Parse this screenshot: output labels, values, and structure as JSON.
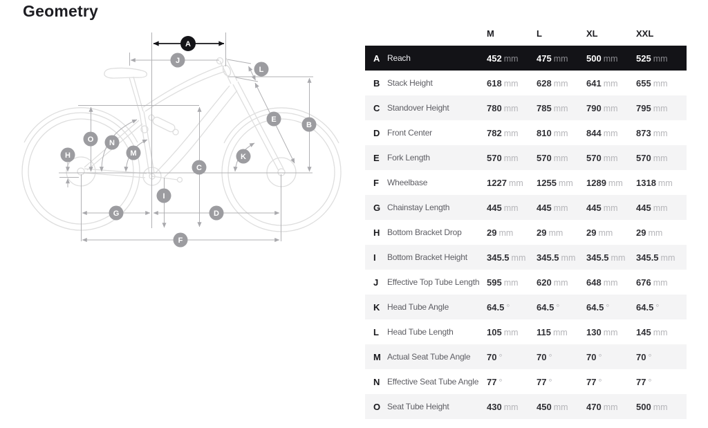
{
  "title": "Geometry",
  "table": {
    "columns": [
      "M",
      "L",
      "XL",
      "XXL"
    ],
    "rows": [
      {
        "letter": "A",
        "name": "Reach",
        "values": [
          "452",
          "475",
          "500",
          "525"
        ],
        "unit": "mm",
        "highlight": true
      },
      {
        "letter": "B",
        "name": "Stack Height",
        "values": [
          "618",
          "628",
          "641",
          "655"
        ],
        "unit": "mm"
      },
      {
        "letter": "C",
        "name": "Standover Height",
        "values": [
          "780",
          "785",
          "790",
          "795"
        ],
        "unit": "mm"
      },
      {
        "letter": "D",
        "name": "Front Center",
        "values": [
          "782",
          "810",
          "844",
          "873"
        ],
        "unit": "mm"
      },
      {
        "letter": "E",
        "name": "Fork Length",
        "values": [
          "570",
          "570",
          "570",
          "570"
        ],
        "unit": "mm"
      },
      {
        "letter": "F",
        "name": "Wheelbase",
        "values": [
          "1227",
          "1255",
          "1289",
          "1318"
        ],
        "unit": "mm"
      },
      {
        "letter": "G",
        "name": "Chainstay Length",
        "values": [
          "445",
          "445",
          "445",
          "445"
        ],
        "unit": "mm"
      },
      {
        "letter": "H",
        "name": "Bottom Bracket Drop",
        "values": [
          "29",
          "29",
          "29",
          "29"
        ],
        "unit": "mm"
      },
      {
        "letter": "I",
        "name": "Bottom Bracket Height",
        "values": [
          "345.5",
          "345.5",
          "345.5",
          "345.5"
        ],
        "unit": "mm"
      },
      {
        "letter": "J",
        "name": "Effective Top Tube Length",
        "values": [
          "595",
          "620",
          "648",
          "676"
        ],
        "unit": "mm"
      },
      {
        "letter": "K",
        "name": "Head Tube Angle",
        "values": [
          "64.5",
          "64.5",
          "64.5",
          "64.5"
        ],
        "unit": "°"
      },
      {
        "letter": "L",
        "name": "Head Tube Length",
        "values": [
          "105",
          "115",
          "130",
          "145"
        ],
        "unit": "mm"
      },
      {
        "letter": "M",
        "name": "Actual Seat Tube Angle",
        "values": [
          "70",
          "70",
          "70",
          "70"
        ],
        "unit": "°"
      },
      {
        "letter": "N",
        "name": "Effective Seat Tube Angle",
        "values": [
          "77",
          "77",
          "77",
          "77"
        ],
        "unit": "°"
      },
      {
        "letter": "O",
        "name": "Seat Tube Height",
        "values": [
          "430",
          "450",
          "470",
          "500"
        ],
        "unit": "mm"
      }
    ]
  },
  "diagram": {
    "marker_letters": [
      "A",
      "B",
      "C",
      "D",
      "E",
      "F",
      "G",
      "H",
      "I",
      "J",
      "K",
      "L",
      "M",
      "N",
      "O"
    ],
    "colors": {
      "marker_gray": "#9c9ca0",
      "marker_black": "#141418",
      "dimension_line": "#b0b0b3",
      "bike_outline": "#dedede",
      "highlight_row_bg": "#131317",
      "alt_row_bg": "#f4f4f5"
    }
  }
}
